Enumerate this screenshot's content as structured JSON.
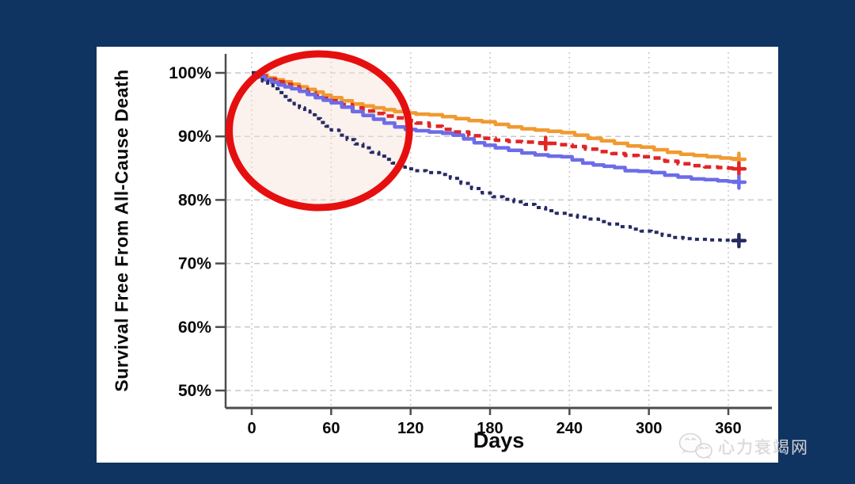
{
  "slide": {
    "background_color": "#0f3462",
    "panel_color": "#ffffff",
    "watermark": {
      "icon": "wechat-chat-bubbles-icon",
      "text": "心力衰竭网",
      "color": "#d8d8d8"
    }
  },
  "chart_data": {
    "type": "line",
    "subtype": "kaplan-meier-step-survival",
    "title": "",
    "xlabel": "Days",
    "ylabel": "Survival Free From All-Cause Death",
    "xlim": [
      0,
      392
    ],
    "ylim": [
      46,
      102
    ],
    "grid": true,
    "legend_position": "none",
    "x_ticks": [
      0,
      60,
      120,
      180,
      240,
      300,
      360
    ],
    "x_tick_labels": [
      "0",
      "60",
      "120",
      "180",
      "240",
      "300",
      "360"
    ],
    "y_ticks": [
      100,
      90,
      80,
      70,
      60,
      50
    ],
    "y_tick_labels": [
      "100%",
      "90%",
      "80%",
      "70%",
      "60%",
      "50%"
    ],
    "axis_color": "#4d4d4d",
    "grid_color": "#c9c9c9",
    "tick_label_color": "#0a0a0a",
    "series": [
      {
        "name": "orange-solid",
        "color": "#f09a30",
        "dash": null,
        "width": 4.5,
        "end_marker": "+",
        "markers": [
          [
            368,
            86.4
          ]
        ],
        "points": [
          [
            0,
            100
          ],
          [
            6,
            99.6
          ],
          [
            12,
            99.2
          ],
          [
            18,
            98.9
          ],
          [
            24,
            98.6
          ],
          [
            30,
            98.2
          ],
          [
            36,
            97.8
          ],
          [
            42,
            97.4
          ],
          [
            48,
            97.0
          ],
          [
            54,
            96.5
          ],
          [
            60,
            96.1
          ],
          [
            68,
            95.6
          ],
          [
            76,
            95.1
          ],
          [
            84,
            94.8
          ],
          [
            92,
            94.5
          ],
          [
            100,
            94.2
          ],
          [
            108,
            93.9
          ],
          [
            116,
            93.7
          ],
          [
            124,
            93.5
          ],
          [
            134,
            93.4
          ],
          [
            144,
            93.1
          ],
          [
            154,
            92.8
          ],
          [
            164,
            92.5
          ],
          [
            174,
            92.3
          ],
          [
            184,
            91.9
          ],
          [
            194,
            91.5
          ],
          [
            204,
            91.2
          ],
          [
            214,
            91.0
          ],
          [
            224,
            90.8
          ],
          [
            234,
            90.6
          ],
          [
            244,
            90.2
          ],
          [
            254,
            89.7
          ],
          [
            264,
            89.3
          ],
          [
            274,
            88.9
          ],
          [
            284,
            88.5
          ],
          [
            294,
            88.3
          ],
          [
            304,
            87.9
          ],
          [
            314,
            87.5
          ],
          [
            324,
            87.2
          ],
          [
            334,
            87.0
          ],
          [
            344,
            86.8
          ],
          [
            354,
            86.6
          ],
          [
            362,
            86.5
          ],
          [
            368,
            86.4
          ]
        ]
      },
      {
        "name": "red-dashed",
        "color": "#e12525",
        "dash": "9 6",
        "width": 4.5,
        "end_marker": "+",
        "markers": [
          [
            222,
            88.9
          ],
          [
            368,
            84.9
          ]
        ],
        "points": [
          [
            0,
            100
          ],
          [
            6,
            99.5
          ],
          [
            12,
            99.0
          ],
          [
            18,
            98.6
          ],
          [
            24,
            98.2
          ],
          [
            30,
            97.8
          ],
          [
            36,
            97.4
          ],
          [
            42,
            96.9
          ],
          [
            48,
            96.4
          ],
          [
            54,
            96.0
          ],
          [
            60,
            95.6
          ],
          [
            68,
            95.0
          ],
          [
            76,
            94.5
          ],
          [
            84,
            94.0
          ],
          [
            92,
            93.6
          ],
          [
            100,
            93.2
          ],
          [
            108,
            92.9
          ],
          [
            116,
            92.5
          ],
          [
            124,
            92.1
          ],
          [
            134,
            91.6
          ],
          [
            144,
            91.1
          ],
          [
            154,
            90.7
          ],
          [
            164,
            90.1
          ],
          [
            174,
            89.7
          ],
          [
            184,
            89.4
          ],
          [
            194,
            89.2
          ],
          [
            204,
            89.1
          ],
          [
            214,
            89.0
          ],
          [
            222,
            88.9
          ],
          [
            232,
            88.7
          ],
          [
            242,
            88.4
          ],
          [
            252,
            88.0
          ],
          [
            262,
            87.6
          ],
          [
            272,
            87.3
          ],
          [
            282,
            87.0
          ],
          [
            292,
            86.8
          ],
          [
            302,
            86.6
          ],
          [
            312,
            86.1
          ],
          [
            322,
            85.7
          ],
          [
            332,
            85.4
          ],
          [
            342,
            85.2
          ],
          [
            352,
            85.1
          ],
          [
            360,
            85.0
          ],
          [
            368,
            84.9
          ]
        ]
      },
      {
        "name": "blue-solid",
        "color": "#6c6ce9",
        "dash": null,
        "width": 4.5,
        "end_marker": "+",
        "markers": [
          [
            368,
            82.8
          ]
        ],
        "points": [
          [
            0,
            100
          ],
          [
            5,
            99.4
          ],
          [
            10,
            98.9
          ],
          [
            15,
            98.5
          ],
          [
            20,
            98.1
          ],
          [
            25,
            97.8
          ],
          [
            30,
            97.5
          ],
          [
            36,
            97.1
          ],
          [
            42,
            96.6
          ],
          [
            48,
            96.1
          ],
          [
            54,
            95.7
          ],
          [
            60,
            95.3
          ],
          [
            68,
            94.6
          ],
          [
            76,
            93.9
          ],
          [
            84,
            93.3
          ],
          [
            92,
            92.7
          ],
          [
            100,
            92.1
          ],
          [
            108,
            91.5
          ],
          [
            116,
            91.1
          ],
          [
            124,
            90.9
          ],
          [
            134,
            90.7
          ],
          [
            144,
            90.5
          ],
          [
            152,
            90.2
          ],
          [
            160,
            89.6
          ],
          [
            168,
            89.0
          ],
          [
            176,
            88.6
          ],
          [
            184,
            88.2
          ],
          [
            194,
            87.8
          ],
          [
            204,
            87.4
          ],
          [
            214,
            87.1
          ],
          [
            224,
            86.9
          ],
          [
            234,
            86.8
          ],
          [
            242,
            86.3
          ],
          [
            250,
            85.8
          ],
          [
            258,
            85.5
          ],
          [
            266,
            85.3
          ],
          [
            274,
            85.1
          ],
          [
            282,
            84.6
          ],
          [
            292,
            84.5
          ],
          [
            302,
            84.3
          ],
          [
            312,
            83.9
          ],
          [
            322,
            83.6
          ],
          [
            332,
            83.3
          ],
          [
            342,
            83.2
          ],
          [
            352,
            83.0
          ],
          [
            360,
            82.9
          ],
          [
            368,
            82.8
          ]
        ]
      },
      {
        "name": "navy-dotted",
        "color": "#262b63",
        "dash": "5 5",
        "width": 4,
        "end_marker": "+",
        "markers": [
          [
            368,
            73.6
          ]
        ],
        "points": [
          [
            0,
            100
          ],
          [
            4,
            99.3
          ],
          [
            8,
            98.7
          ],
          [
            12,
            98.1
          ],
          [
            16,
            97.5
          ],
          [
            20,
            96.9
          ],
          [
            24,
            96.3
          ],
          [
            28,
            95.7
          ],
          [
            32,
            95.1
          ],
          [
            36,
            94.5
          ],
          [
            40,
            94.0
          ],
          [
            44,
            93.4
          ],
          [
            48,
            92.8
          ],
          [
            52,
            92.2
          ],
          [
            56,
            91.6
          ],
          [
            60,
            91.0
          ],
          [
            66,
            90.2
          ],
          [
            72,
            89.5
          ],
          [
            78,
            88.8
          ],
          [
            84,
            88.2
          ],
          [
            90,
            87.5
          ],
          [
            96,
            86.9
          ],
          [
            102,
            86.4
          ],
          [
            106,
            85.8
          ],
          [
            110,
            85.2
          ],
          [
            116,
            84.9
          ],
          [
            122,
            84.6
          ],
          [
            132,
            84.3
          ],
          [
            142,
            84.0
          ],
          [
            150,
            83.4
          ],
          [
            158,
            82.6
          ],
          [
            166,
            81.8
          ],
          [
            174,
            81.1
          ],
          [
            182,
            80.5
          ],
          [
            190,
            80.1
          ],
          [
            198,
            79.7
          ],
          [
            206,
            79.3
          ],
          [
            214,
            78.8
          ],
          [
            222,
            78.3
          ],
          [
            230,
            77.9
          ],
          [
            238,
            77.6
          ],
          [
            246,
            77.3
          ],
          [
            254,
            77.0
          ],
          [
            262,
            76.6
          ],
          [
            270,
            76.2
          ],
          [
            278,
            75.8
          ],
          [
            286,
            75.4
          ],
          [
            294,
            75.1
          ],
          [
            302,
            74.9
          ],
          [
            310,
            74.4
          ],
          [
            318,
            74.1
          ],
          [
            326,
            73.9
          ],
          [
            334,
            73.8
          ],
          [
            344,
            73.7
          ],
          [
            354,
            73.65
          ],
          [
            368,
            73.6
          ]
        ]
      }
    ],
    "annotation": {
      "shape": "ellipse",
      "center_day": 51,
      "center_pct": 90.9,
      "radius_days": 68,
      "radius_pct": 12.1,
      "stroke_color": "#e60f0f",
      "stroke_width": 9,
      "fill": "rgba(246,224,216,0.45)"
    }
  }
}
